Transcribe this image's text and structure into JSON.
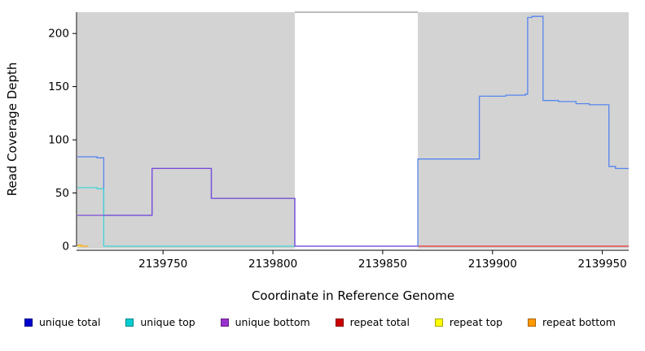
{
  "page": {
    "background": "#ffffff"
  },
  "chart_data": {
    "type": "line",
    "title": "",
    "xlabel": "Coordinate in Reference Genome",
    "ylabel": "Read Coverage Depth",
    "xlim": [
      2139711,
      2139962
    ],
    "ylim": [
      0,
      220
    ],
    "xticks": [
      2139750,
      2139800,
      2139850,
      2139900,
      2139950
    ],
    "yticks": [
      0,
      50,
      100,
      150,
      200
    ],
    "grid": false,
    "shaded_regions": [
      {
        "x0": 2139711,
        "x1": 2139810,
        "color": "#d3d3d3"
      },
      {
        "x0": 2139866,
        "x1": 2139962,
        "color": "#d3d3d3"
      }
    ],
    "gap_top_segment": {
      "x0": 2139810,
      "x1": 2139866,
      "y": 220,
      "color": "#909090"
    },
    "series": [
      {
        "name": "repeat top",
        "color": "#eded3a",
        "points": [
          [
            2139711,
            0
          ],
          [
            2139716,
            0
          ]
        ]
      },
      {
        "name": "repeat bottom",
        "color": "#ffa428",
        "points": [
          [
            2139711,
            1
          ],
          [
            2139713,
            1
          ],
          [
            2139713,
            0
          ],
          [
            2139716,
            0
          ]
        ]
      },
      {
        "name": "repeat total",
        "color": "#e62e2e",
        "points": [
          [
            2139866,
            0
          ],
          [
            2139962,
            0
          ]
        ]
      },
      {
        "name": "unique total",
        "color": "#5585ee",
        "points": [
          [
            2139711,
            84
          ],
          [
            2139720,
            84
          ],
          [
            2139720,
            83
          ],
          [
            2139723,
            83
          ],
          [
            2139723,
            29
          ],
          [
            2139745,
            29
          ],
          [
            2139745,
            73
          ],
          [
            2139772,
            73
          ],
          [
            2139772,
            45
          ],
          [
            2139810,
            45
          ],
          [
            2139810,
            0
          ],
          [
            2139866,
            0
          ],
          [
            2139866,
            82
          ],
          [
            2139894,
            82
          ],
          [
            2139894,
            141
          ],
          [
            2139906,
            141
          ],
          [
            2139906,
            142
          ],
          [
            2139915,
            142
          ],
          [
            2139915,
            143
          ],
          [
            2139916,
            143
          ],
          [
            2139916,
            215
          ],
          [
            2139918,
            215
          ],
          [
            2139918,
            216
          ],
          [
            2139923,
            216
          ],
          [
            2139923,
            137
          ],
          [
            2139930,
            137
          ],
          [
            2139930,
            136
          ],
          [
            2139938,
            136
          ],
          [
            2139938,
            134
          ],
          [
            2139944,
            134
          ],
          [
            2139944,
            133
          ],
          [
            2139953,
            133
          ],
          [
            2139953,
            75
          ],
          [
            2139956,
            75
          ],
          [
            2139956,
            73
          ],
          [
            2139962,
            73
          ]
        ]
      },
      {
        "name": "unique top",
        "color": "#3fd4d4",
        "points": [
          [
            2139711,
            55
          ],
          [
            2139720,
            55
          ],
          [
            2139720,
            54
          ],
          [
            2139723,
            54
          ],
          [
            2139723,
            0
          ],
          [
            2139810,
            0
          ]
        ]
      },
      {
        "name": "unique bottom",
        "color": "#7a4bd6",
        "points": [
          [
            2139711,
            29
          ],
          [
            2139745,
            29
          ],
          [
            2139745,
            73
          ],
          [
            2139772,
            73
          ],
          [
            2139772,
            45
          ],
          [
            2139810,
            45
          ],
          [
            2139810,
            0
          ],
          [
            2139866,
            0
          ]
        ]
      }
    ],
    "legend": [
      {
        "label": "unique total",
        "color": "#0000cd"
      },
      {
        "label": "unique top",
        "color": "#00ced1"
      },
      {
        "label": "unique bottom",
        "color": "#9932cc"
      },
      {
        "label": "repeat total",
        "color": "#cc0000"
      },
      {
        "label": "repeat top",
        "color": "#ffff00"
      },
      {
        "label": "repeat bottom",
        "color": "#ff9900"
      }
    ],
    "legend_position": "bottom"
  }
}
